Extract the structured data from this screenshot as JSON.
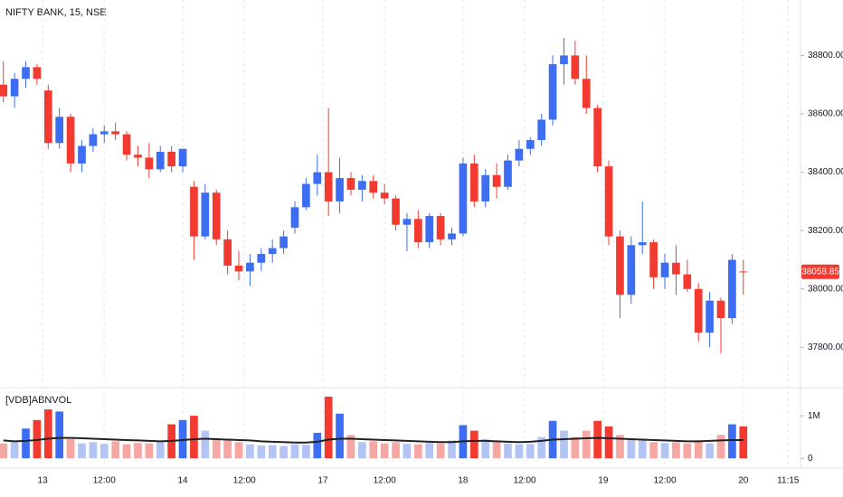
{
  "chart_data": [
    {
      "type": "candlestick",
      "title": "NIFTY BANK, 15, NSE",
      "x": [
        -7,
        -5,
        -3,
        -1,
        1,
        3,
        5,
        7,
        9,
        11,
        13,
        15,
        17,
        19,
        21,
        23,
        25,
        27,
        29,
        31,
        33,
        35,
        37,
        39,
        41,
        43,
        45,
        47,
        49,
        51,
        53,
        55,
        57,
        59,
        61,
        63,
        65,
        67,
        69,
        71,
        73,
        75,
        77,
        79,
        81,
        83,
        85,
        87,
        89,
        91,
        93,
        95,
        97,
        99,
        101,
        103,
        105,
        107,
        109,
        111,
        113,
        115,
        117,
        119,
        121,
        123,
        125
      ],
      "open": [
        38700,
        38660,
        38720,
        38760,
        38680,
        38500,
        38590,
        38430,
        38490,
        38530,
        38540,
        38530,
        38460,
        38450,
        38410,
        38470,
        38420,
        38350,
        38180,
        38330,
        38170,
        38080,
        38060,
        38090,
        38120,
        38140,
        38210,
        38280,
        38360,
        38400,
        38300,
        38380,
        38340,
        38370,
        38330,
        38310,
        38220,
        38240,
        38160,
        38250,
        38170,
        38190,
        38430,
        38300,
        38390,
        38350,
        38440,
        38480,
        38510,
        38580,
        38770,
        38800,
        38720,
        38620,
        38420,
        38180,
        37980,
        38150,
        38160,
        38040,
        38090,
        38050,
        38000,
        37850,
        37960,
        37900,
        38060
      ],
      "high": [
        38780,
        38740,
        38780,
        38770,
        38700,
        38620,
        38600,
        38510,
        38550,
        38560,
        38570,
        38540,
        38490,
        38500,
        38490,
        38490,
        38480,
        38370,
        38360,
        38340,
        38200,
        38130,
        38120,
        38140,
        38170,
        38200,
        38300,
        38380,
        38460,
        38620,
        38450,
        38400,
        38390,
        38390,
        38360,
        38320,
        38260,
        38270,
        38260,
        38260,
        38210,
        38450,
        38460,
        38410,
        38430,
        38460,
        38510,
        38520,
        38600,
        38800,
        38860,
        38850,
        38800,
        38630,
        38440,
        38200,
        38180,
        38300,
        38170,
        38120,
        38150,
        38100,
        38020,
        37990,
        37970,
        38120,
        38100
      ],
      "low": [
        38640,
        38620,
        38690,
        38700,
        38480,
        38480,
        38400,
        38400,
        38470,
        38500,
        38510,
        38440,
        38420,
        38380,
        38400,
        38400,
        38400,
        38100,
        38170,
        38150,
        38050,
        38030,
        38010,
        38060,
        38090,
        38120,
        38190,
        38270,
        38320,
        38250,
        38260,
        38320,
        38300,
        38310,
        38290,
        38200,
        38130,
        38140,
        38140,
        38150,
        38150,
        38180,
        38280,
        38280,
        38310,
        38340,
        38420,
        38460,
        38490,
        38560,
        38700,
        38700,
        38600,
        38400,
        38150,
        37900,
        37950,
        38120,
        38000,
        38000,
        37980,
        37990,
        37820,
        37800,
        37780,
        37880,
        37980
      ],
      "close": [
        38660,
        38720,
        38760,
        38720,
        38500,
        38590,
        38430,
        38490,
        38530,
        38540,
        38530,
        38460,
        38450,
        38410,
        38470,
        38420,
        38480,
        38180,
        38330,
        38170,
        38080,
        38060,
        38090,
        38120,
        38140,
        38180,
        38280,
        38360,
        38400,
        38300,
        38380,
        38340,
        38370,
        38330,
        38310,
        38220,
        38240,
        38160,
        38250,
        38170,
        38190,
        38430,
        38300,
        38390,
        38350,
        38440,
        38480,
        38510,
        38580,
        38770,
        38800,
        38720,
        38620,
        38420,
        38180,
        37980,
        38150,
        38160,
        38040,
        38090,
        38050,
        38000,
        37850,
        37960,
        37900,
        38100,
        38058.85
      ],
      "colors": {
        "up": "#3d6df2",
        "down": "#f23a30"
      },
      "xlim": [
        -7.6,
        135.2
      ],
      "xticks": [
        {
          "value": 0,
          "label": "13"
        },
        {
          "value": 11,
          "label": "12:00"
        },
        {
          "value": 25,
          "label": "14"
        },
        {
          "value": 36,
          "label": "12:00"
        },
        {
          "value": 50,
          "label": "17"
        },
        {
          "value": 61,
          "label": "12:00"
        },
        {
          "value": 75,
          "label": "18"
        },
        {
          "value": 86,
          "label": "12:00"
        },
        {
          "value": 100,
          "label": "19"
        },
        {
          "value": 111,
          "label": "12:00"
        },
        {
          "value": 125,
          "label": "20"
        },
        {
          "value": 133,
          "label": "11:15"
        }
      ],
      "ylim": [
        37665,
        38990
      ],
      "yticks": [
        {
          "value": 37800,
          "label": "37800.00"
        },
        {
          "value": 38000,
          "label": "38000.00"
        },
        {
          "value": 38200,
          "label": "38200.00"
        },
        {
          "value": 38400,
          "label": "38400.00"
        },
        {
          "value": 38600,
          "label": "38600.00"
        },
        {
          "value": 38800,
          "label": "38800.00"
        }
      ]
    },
    {
      "type": "volume",
      "title": "[VDB]ABNVOL",
      "values": [
        350000,
        380000,
        700000,
        900000,
        1150000,
        1100000,
        450000,
        350000,
        380000,
        340000,
        400000,
        330000,
        360000,
        350000,
        380000,
        800000,
        900000,
        1000000,
        650000,
        450000,
        420000,
        380000,
        330000,
        300000,
        310000,
        290000,
        330000,
        320000,
        600000,
        1450000,
        1050000,
        550000,
        380000,
        400000,
        350000,
        380000,
        340000,
        330000,
        360000,
        350000,
        420000,
        780000,
        650000,
        450000,
        380000,
        350000,
        330000,
        340000,
        500000,
        880000,
        650000,
        500000,
        650000,
        880000,
        750000,
        550000,
        450000,
        420000,
        380000,
        360000,
        380000,
        350000,
        420000,
        350000,
        550000,
        800000,
        750000
      ],
      "ma": [
        420000,
        400000,
        410000,
        430000,
        460000,
        480000,
        480000,
        470000,
        460000,
        450000,
        440000,
        430000,
        420000,
        410000,
        400000,
        410000,
        430000,
        450000,
        460000,
        450000,
        440000,
        430000,
        420000,
        400000,
        390000,
        380000,
        370000,
        370000,
        390000,
        440000,
        460000,
        460000,
        450000,
        440000,
        430000,
        420000,
        410000,
        400000,
        390000,
        380000,
        380000,
        400000,
        410000,
        410000,
        400000,
        390000,
        380000,
        390000,
        410000,
        440000,
        450000,
        460000,
        470000,
        480000,
        470000,
        460000,
        450000,
        440000,
        430000,
        420000,
        410000,
        400000,
        400000,
        410000,
        420000,
        430000,
        430000
      ],
      "colors": {
        "up": "#3d6df2",
        "down": "#f23a30",
        "up_light": "#b3c3f4",
        "down_light": "#f6a6a3",
        "ma": "#222222"
      },
      "ylim": [
        -230000,
        1640000
      ],
      "yticks": [
        0,
        {
          "value": 1000000,
          "label": "1M"
        }
      ]
    }
  ]
}
